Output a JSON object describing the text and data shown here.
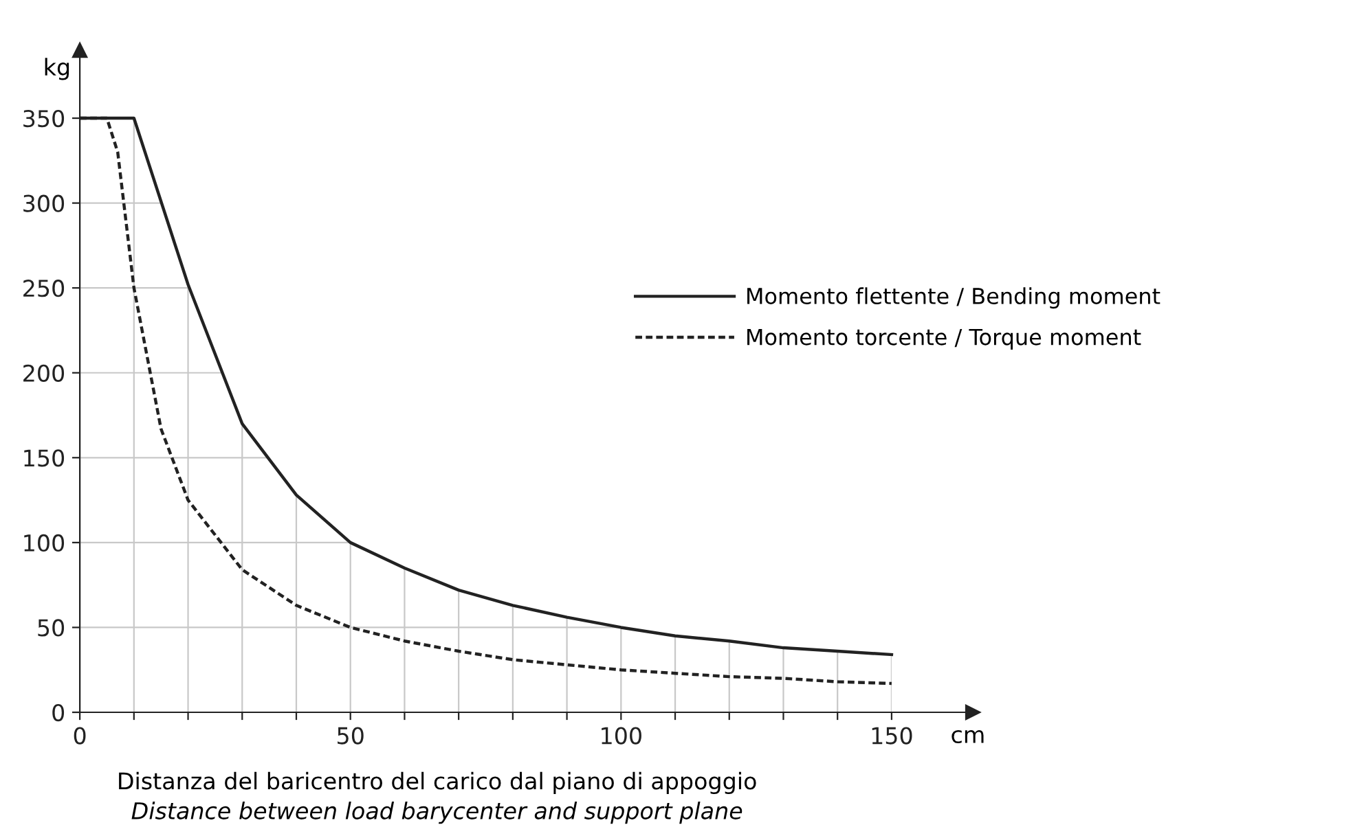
{
  "chart_data": {
    "type": "line",
    "ylabel": "kg",
    "xlabel": "cm",
    "annotations": [
      "Distanza del baricentro del carico dal piano di appoggio",
      "Distance between load barycenter and support plane"
    ],
    "xlim": [
      0,
      165
    ],
    "ylim": [
      0,
      390
    ],
    "xticks": [
      0,
      {
        "value": 10,
        "label": null
      },
      {
        "value": 20,
        "label": null
      },
      {
        "value": 30,
        "label": null
      },
      {
        "value": 40,
        "label": null
      },
      50,
      {
        "value": 60,
        "label": null
      },
      {
        "value": 70,
        "label": null
      },
      {
        "value": 80,
        "label": null
      },
      {
        "value": 90,
        "label": null
      },
      100,
      {
        "value": 110,
        "label": null
      },
      {
        "value": 120,
        "label": null
      },
      {
        "value": 130,
        "label": null
      },
      {
        "value": 140,
        "label": null
      },
      150
    ],
    "yticks": [
      0,
      50,
      100,
      150,
      200,
      250,
      300,
      350
    ],
    "grid": true,
    "legend": "right",
    "marker": "none",
    "series": [
      {
        "name": "Momento flettente / Bending moment",
        "color": "#222222",
        "line_style": "solid",
        "x": [
          0,
          10,
          20,
          30,
          40,
          50,
          60,
          70,
          80,
          90,
          100,
          110,
          120,
          130,
          140,
          150
        ],
        "values": [
          350,
          350,
          252,
          170,
          128,
          100,
          85,
          72,
          63,
          56,
          50,
          45,
          42,
          38,
          36,
          34
        ]
      },
      {
        "name": "Momento torcente / Torque moment",
        "color": "#222222",
        "line_style": "dashed",
        "x": [
          0,
          5,
          7,
          10,
          15,
          20,
          30,
          40,
          50,
          60,
          70,
          80,
          90,
          100,
          110,
          120,
          130,
          140,
          150
        ],
        "values": [
          350,
          350,
          330,
          250,
          167,
          125,
          84,
          63,
          50,
          42,
          36,
          31,
          28,
          25,
          23,
          21,
          20,
          18,
          17
        ]
      }
    ]
  }
}
